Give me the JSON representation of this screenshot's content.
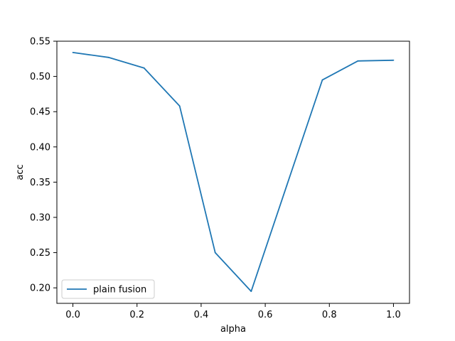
{
  "chart_data": {
    "type": "line",
    "title": "",
    "xlabel": "alpha",
    "ylabel": "acc",
    "xlim": [
      -0.05,
      1.05
    ],
    "ylim": [
      0.178,
      0.55
    ],
    "x_ticks": [
      0.0,
      0.2,
      0.4,
      0.6,
      0.8,
      1.0
    ],
    "x_tick_labels": [
      "0.0",
      "0.2",
      "0.4",
      "0.6",
      "0.8",
      "1.0"
    ],
    "y_ticks": [
      0.2,
      0.25,
      0.3,
      0.35,
      0.4,
      0.45,
      0.5,
      0.55
    ],
    "y_tick_labels": [
      "0.20",
      "0.25",
      "0.30",
      "0.35",
      "0.40",
      "0.45",
      "0.50",
      "0.55"
    ],
    "grid": false,
    "legend_position": "lower-left",
    "series": [
      {
        "name": "plain fusion",
        "color": "#1f77b4",
        "x": [
          0.0,
          0.111,
          0.222,
          0.333,
          0.444,
          0.556,
          0.667,
          0.778,
          0.889,
          1.0
        ],
        "y": [
          0.534,
          0.527,
          0.512,
          0.458,
          0.25,
          0.195,
          0.345,
          0.495,
          0.522,
          0.523
        ]
      }
    ]
  }
}
